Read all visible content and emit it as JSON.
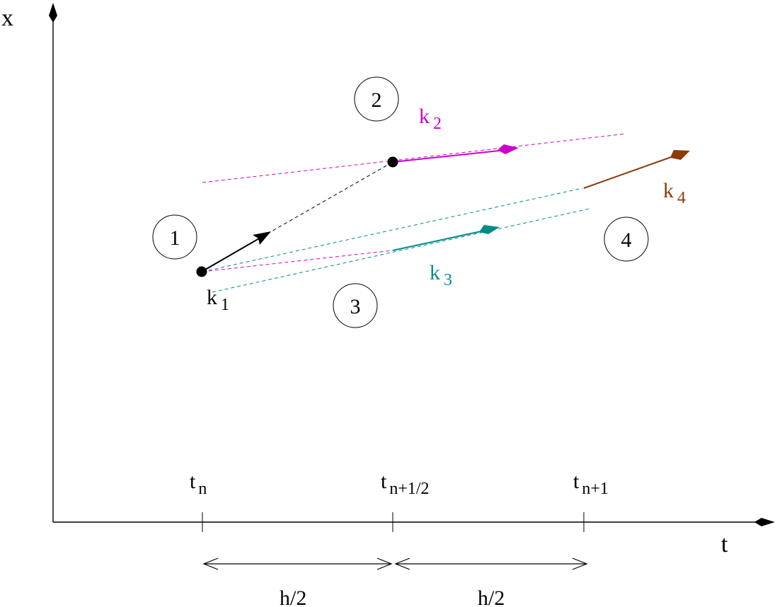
{
  "axes": {
    "x_label": "x",
    "t_label": "t"
  },
  "ticks": {
    "tn": {
      "base": "t",
      "sub": "n"
    },
    "thalf": {
      "base": "t",
      "sub": "n+1/2"
    },
    "tn1": {
      "base": "t",
      "sub": "n+1"
    }
  },
  "intervals": {
    "first": "h/2",
    "second": "h/2"
  },
  "steps": {
    "s1": "1",
    "s2": "2",
    "s3": "3",
    "s4": "4"
  },
  "slopes": {
    "k1": {
      "base": "k",
      "sub": "1",
      "color": "#000000"
    },
    "k2": {
      "base": "k",
      "sub": "2",
      "color": "#cc00cc"
    },
    "k3": {
      "base": "k",
      "sub": "3",
      "color": "#008b8b"
    },
    "k4": {
      "base": "k",
      "sub": "4",
      "color": "#8b3a0a"
    }
  }
}
